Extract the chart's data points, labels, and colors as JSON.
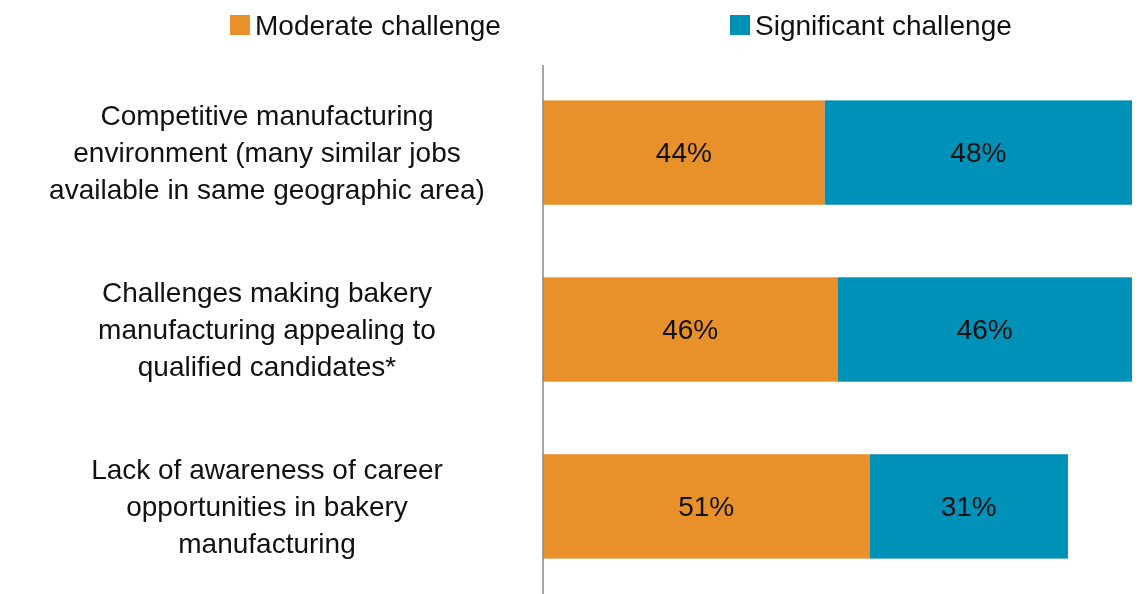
{
  "chart_data": {
    "type": "bar",
    "orientation": "horizontal",
    "stacked": true,
    "legend": "top",
    "categories": [
      "Competitive manufacturing environment (many similar jobs available in same geographic area)",
      "Challenges making bakery manufacturing appealing to qualified candidates*",
      "Lack of awareness of career opportunities in bakery manufacturing"
    ],
    "series": [
      {
        "name": "Moderate challenge",
        "color": "#e8912a",
        "values": [
          44,
          46,
          51
        ],
        "value_labels": [
          "44%",
          "46%",
          "51%"
        ]
      },
      {
        "name": "Significant challenge",
        "color": "#0091b8",
        "values": [
          48,
          46,
          31
        ],
        "value_labels": [
          "48%",
          "46%",
          "31%"
        ]
      }
    ]
  }
}
